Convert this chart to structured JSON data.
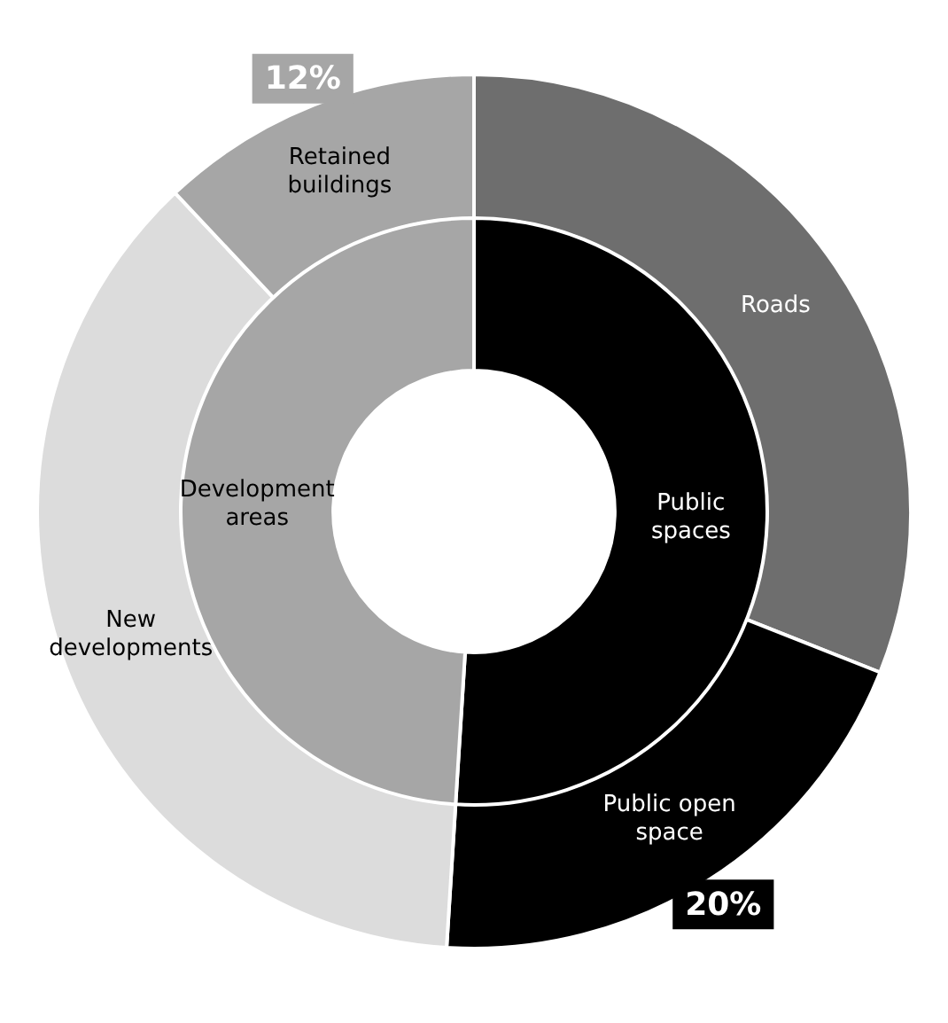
{
  "chart_data": [
    {
      "type": "donut",
      "legend": false,
      "categories": [
        "Public spaces",
        "Development areas"
      ],
      "values": [
        51,
        49
      ],
      "colors": [
        "#000000",
        "#a6a6a6"
      ]
    },
    {
      "type": "donut",
      "legend": false,
      "categories": [
        "Roads",
        "Public open space",
        "New developments",
        "Retained buildings"
      ],
      "values": [
        31,
        20,
        37,
        12
      ],
      "colors": [
        "#6e6e6e",
        "#000000",
        "#dcdcdc",
        "#a6a6a6"
      ],
      "value_labels": [
        null,
        "20%",
        null,
        "12%"
      ]
    }
  ]
}
